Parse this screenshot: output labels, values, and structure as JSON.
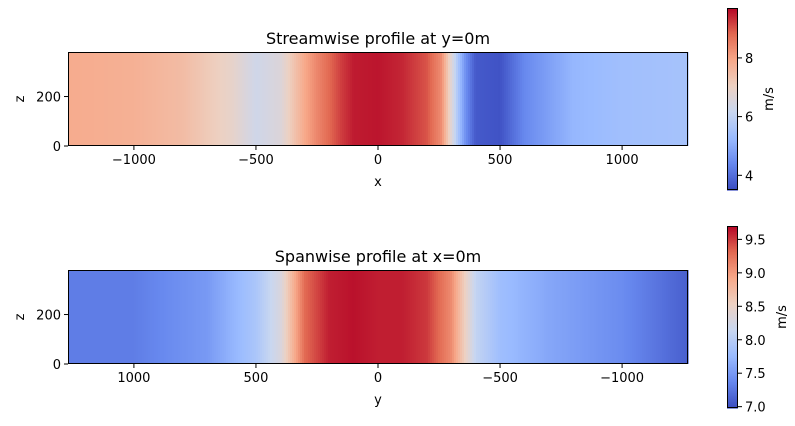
{
  "colormap": {
    "name": "coolwarm",
    "stops": [
      "#3b4cc0",
      "#6788ee",
      "#9abbff",
      "#c9d7f0",
      "#edd1c2",
      "#f7a889",
      "#e26952",
      "#b40426"
    ]
  },
  "chart_data": [
    {
      "type": "heatmap",
      "title": "Streamwise profile at y=0m",
      "xlabel": "x",
      "ylabel": "z",
      "xlim": [
        -1270,
        1270
      ],
      "ylim": [
        0,
        380
      ],
      "xticks": [
        -1000,
        -500,
        0,
        500,
        1000
      ],
      "xtick_labels": [
        "−1000",
        "−500",
        "0",
        "500",
        "1000"
      ],
      "yticks": [
        0,
        200
      ],
      "ytick_labels": [
        "0",
        "200"
      ],
      "colorbar": {
        "label": "m/s",
        "range": [
          3.5,
          9.7
        ],
        "ticks": [
          4,
          6,
          8
        ],
        "tick_labels": [
          "4",
          "6",
          "8"
        ]
      },
      "profile_x": [
        -1270,
        -1000,
        -800,
        -600,
        -500,
        -400,
        -300,
        -250,
        -150,
        -100,
        0,
        100,
        200,
        260,
        300,
        330,
        360,
        400,
        500,
        600,
        800,
        1000,
        1270
      ],
      "profile_v": [
        7.85,
        7.75,
        7.5,
        6.9,
        6.3,
        6.6,
        7.9,
        8.4,
        9.2,
        9.5,
        9.55,
        9.4,
        9.0,
        8.3,
        6.7,
        5.5,
        4.5,
        3.7,
        3.6,
        4.4,
        5.2,
        5.4,
        5.5
      ]
    },
    {
      "type": "heatmap",
      "title": "Spanwise profile at x=0m",
      "xlabel": "y",
      "ylabel": "z",
      "xlim": [
        1270,
        -1270
      ],
      "ylim": [
        0,
        380
      ],
      "xticks": [
        1000,
        500,
        0,
        -500,
        -1000
      ],
      "xtick_labels": [
        "1000",
        "500",
        "0",
        "−500",
        "−1000"
      ],
      "yticks": [
        0,
        200
      ],
      "ytick_labels": [
        "0",
        "200"
      ],
      "colorbar": {
        "label": "m/s",
        "range": [
          6.98,
          9.7
        ],
        "ticks": [
          7.0,
          7.5,
          8.0,
          8.5,
          9.0,
          9.5
        ],
        "tick_labels": [
          "7.0",
          "7.5",
          "8.0",
          "8.5",
          "9.0",
          "9.5"
        ]
      },
      "profile_x": [
        1270,
        1000,
        700,
        500,
        400,
        350,
        300,
        200,
        100,
        0,
        -100,
        -200,
        -300,
        -350,
        -400,
        -500,
        -700,
        -1000,
        -1270
      ],
      "profile_v": [
        7.3,
        7.3,
        7.5,
        7.9,
        8.3,
        8.8,
        9.3,
        9.6,
        9.65,
        9.6,
        9.6,
        9.5,
        9.1,
        8.6,
        8.1,
        7.8,
        7.6,
        7.4,
        7.1
      ]
    }
  ]
}
